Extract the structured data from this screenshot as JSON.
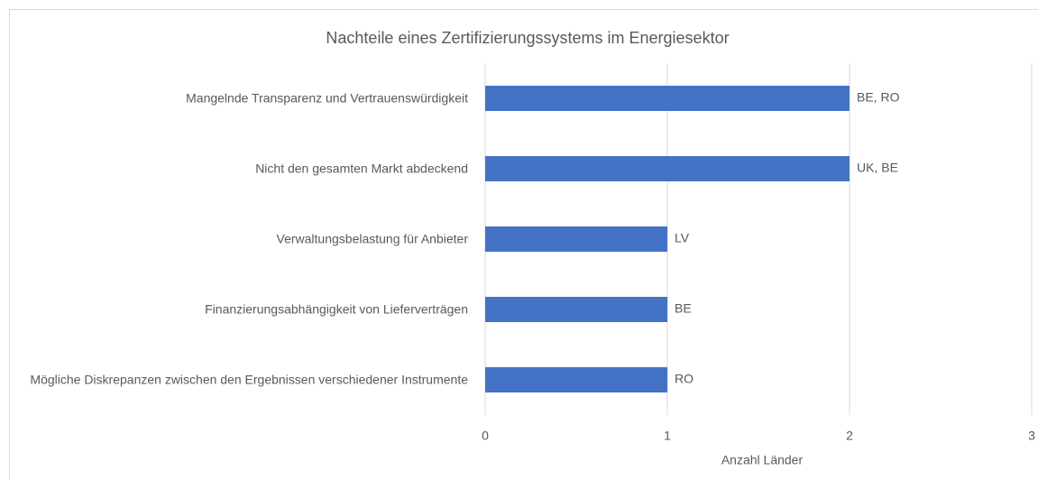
{
  "chart_data": {
    "type": "bar",
    "orientation": "horizontal",
    "title": "Nachteile eines Zertifizierungssystems im Energiesektor",
    "x_label": "Anzahl Länder",
    "categories": [
      "Mangelnde Transparenz und Vertrauenswürdigkeit",
      "Nicht den gesamten Markt abdeckend",
      "Verwaltungsbelastung für Anbieter",
      "Finanzierungsabhängigkeit von Lieferverträgen",
      "Mögliche Diskrepanzen zwischen den Ergebnissen verschiedener Instrumente"
    ],
    "values": [
      2,
      2,
      1,
      1,
      1
    ],
    "value_labels": [
      "BE, RO",
      "UK, BE",
      "LV",
      "BE",
      "RO"
    ],
    "color": "#4472c4",
    "xlim": [
      0,
      3
    ],
    "xticks": [
      0,
      1,
      2,
      3
    ],
    "grid": true
  }
}
